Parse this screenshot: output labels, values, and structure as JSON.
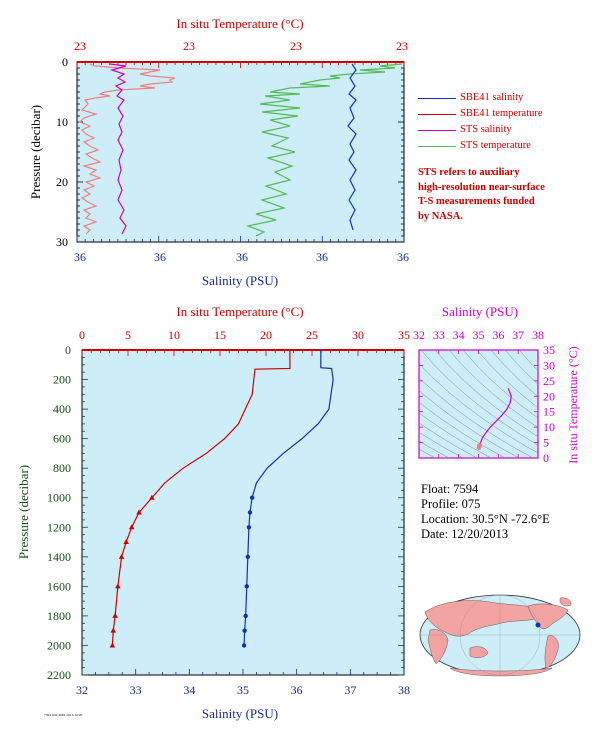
{
  "colors": {
    "plot_bg": "#cdeef8",
    "sbe41_salinity": "#1030c0",
    "sbe41_temperature": "#d00000",
    "sts_salinity": "#cc00cc",
    "sts_temperature": "#55bb55",
    "sts_temperature_light": "#f08080",
    "axis_pressure": "#1a4a1a",
    "ts_axis": "#cc00cc"
  },
  "top_plot": {
    "top_axis_label": "In situ Temperature (°C)",
    "bottom_axis_label": "Salinity (PSU)",
    "y_axis_label": "Pressure (decibar)",
    "top_ticks": [
      "23",
      "23",
      "23",
      "23"
    ],
    "bottom_ticks": [
      "36",
      "36",
      "36",
      "36",
      "36"
    ],
    "y_ticks": [
      "0",
      "10",
      "20",
      "30"
    ]
  },
  "legend": [
    {
      "label": "SBE41 salinity",
      "color": "#1030c0"
    },
    {
      "label": "SBE41 temperature",
      "color": "#d00000"
    },
    {
      "label": "STS salinity",
      "color": "#cc00cc"
    },
    {
      "label": "STS temperature",
      "color": "#55bb55"
    }
  ],
  "note": [
    "STS refers to auxiliary",
    "high-resolution near-surface",
    "T-S measurements funded",
    "by NASA."
  ],
  "bottom_plot": {
    "top_axis_label": "In situ Temperature (°C)",
    "bottom_axis_label": "Salinity (PSU)",
    "y_axis_label": "Pressure (decibar)",
    "top_ticks": [
      "0",
      "5",
      "10",
      "15",
      "20",
      "25",
      "30",
      "35"
    ],
    "bottom_ticks": [
      "32",
      "33",
      "34",
      "35",
      "36",
      "37",
      "38"
    ],
    "y_ticks": [
      "0",
      "200",
      "400",
      "600",
      "800",
      "1000",
      "1200",
      "1400",
      "1600",
      "1800",
      "2000",
      "2200"
    ]
  },
  "ts_plot": {
    "top_axis_label": "Salinity (PSU)",
    "right_axis_label": "In situ Temperature (°C)",
    "top_ticks": [
      "32",
      "33",
      "34",
      "35",
      "36",
      "37",
      "38"
    ],
    "right_ticks": [
      "0",
      "5",
      "10",
      "15",
      "20",
      "25",
      "30",
      "35"
    ]
  },
  "float_info": {
    "float": "Float:  7594",
    "profile": "Profile:  075",
    "location": "Location:  30.5°N  -72.6°E",
    "date": "Date:  12/20/2013"
  },
  "footer_tag": "7594 GM 4681 2013/12/20",
  "chart_data": [
    {
      "type": "line",
      "title": "",
      "xlabel": "Salinity (PSU)",
      "x2label": "In situ Temperature (°C)",
      "ylabel": "Pressure (decibar)",
      "ylim": [
        30,
        0
      ],
      "series": [
        {
          "name": "SBE41 salinity",
          "x": [
            36.75,
            36.75
          ],
          "y": [
            1,
            28
          ]
        },
        {
          "name": "SBE41 temperature",
          "x": [
            23.0,
            23.0
          ],
          "y": [
            0,
            0
          ]
        },
        {
          "name": "STS salinity",
          "x": [
            36.3,
            36.38,
            36.31,
            36.36,
            36.33,
            36.34,
            36.32,
            36.35,
            36.33,
            36.35
          ],
          "y": [
            0.5,
            2,
            4,
            7,
            10,
            13,
            16,
            20,
            24,
            28
          ]
        },
        {
          "name": "STS temperature",
          "x": [
            23.0,
            22.97,
            22.92,
            22.9,
            22.91,
            22.9,
            22.89,
            22.87,
            22.86
          ],
          "y": [
            0.5,
            2,
            4,
            7,
            10,
            14,
            18,
            23,
            28
          ]
        }
      ]
    },
    {
      "type": "line",
      "title": "",
      "xlabel": "Salinity (PSU)",
      "x2label": "In situ Temperature (°C)",
      "ylabel": "Pressure (decibar)",
      "xlim": [
        32,
        38
      ],
      "x2lim": [
        0,
        35
      ],
      "ylim": [
        2200,
        0
      ],
      "series": [
        {
          "name": "SBE41 salinity",
          "x": [
            36.45,
            36.45,
            36.65,
            36.68,
            36.6,
            36.4,
            36.1,
            35.75,
            35.45,
            35.25,
            35.17,
            35.13,
            35.11,
            35.09,
            35.07,
            35.05,
            35.03,
            35.02
          ],
          "y": [
            0,
            120,
            125,
            200,
            400,
            500,
            600,
            700,
            800,
            900,
            1000,
            1100,
            1200,
            1400,
            1600,
            1800,
            1900,
            2000
          ]
        },
        {
          "name": "SBE41 temperature",
          "x": [
            22.6,
            22.6,
            18.8,
            18.5,
            17.0,
            15.5,
            13.5,
            11.0,
            9.0,
            7.6,
            6.2,
            5.4,
            4.8,
            4.3,
            3.9,
            3.6,
            3.4,
            3.3
          ],
          "y": [
            0,
            125,
            130,
            300,
            500,
            600,
            700,
            800,
            900,
            1000,
            1100,
            1200,
            1300,
            1400,
            1600,
            1800,
            1900,
            2000
          ]
        }
      ]
    },
    {
      "type": "line",
      "title": "",
      "xlabel": "Salinity (PSU)",
      "ylabel": "In situ Temperature (°C)",
      "xlim": [
        32,
        38
      ],
      "ylim": [
        0,
        35
      ],
      "series": [
        {
          "name": "T-S profile",
          "x": [
            36.5,
            36.65,
            36.6,
            36.45,
            36.2,
            35.9,
            35.6,
            35.35,
            35.2,
            35.1,
            35.05,
            35.02
          ],
          "y": [
            22.6,
            20,
            18,
            16,
            14,
            12,
            10,
            8,
            6.5,
            5,
            4,
            3.3
          ]
        }
      ]
    }
  ]
}
